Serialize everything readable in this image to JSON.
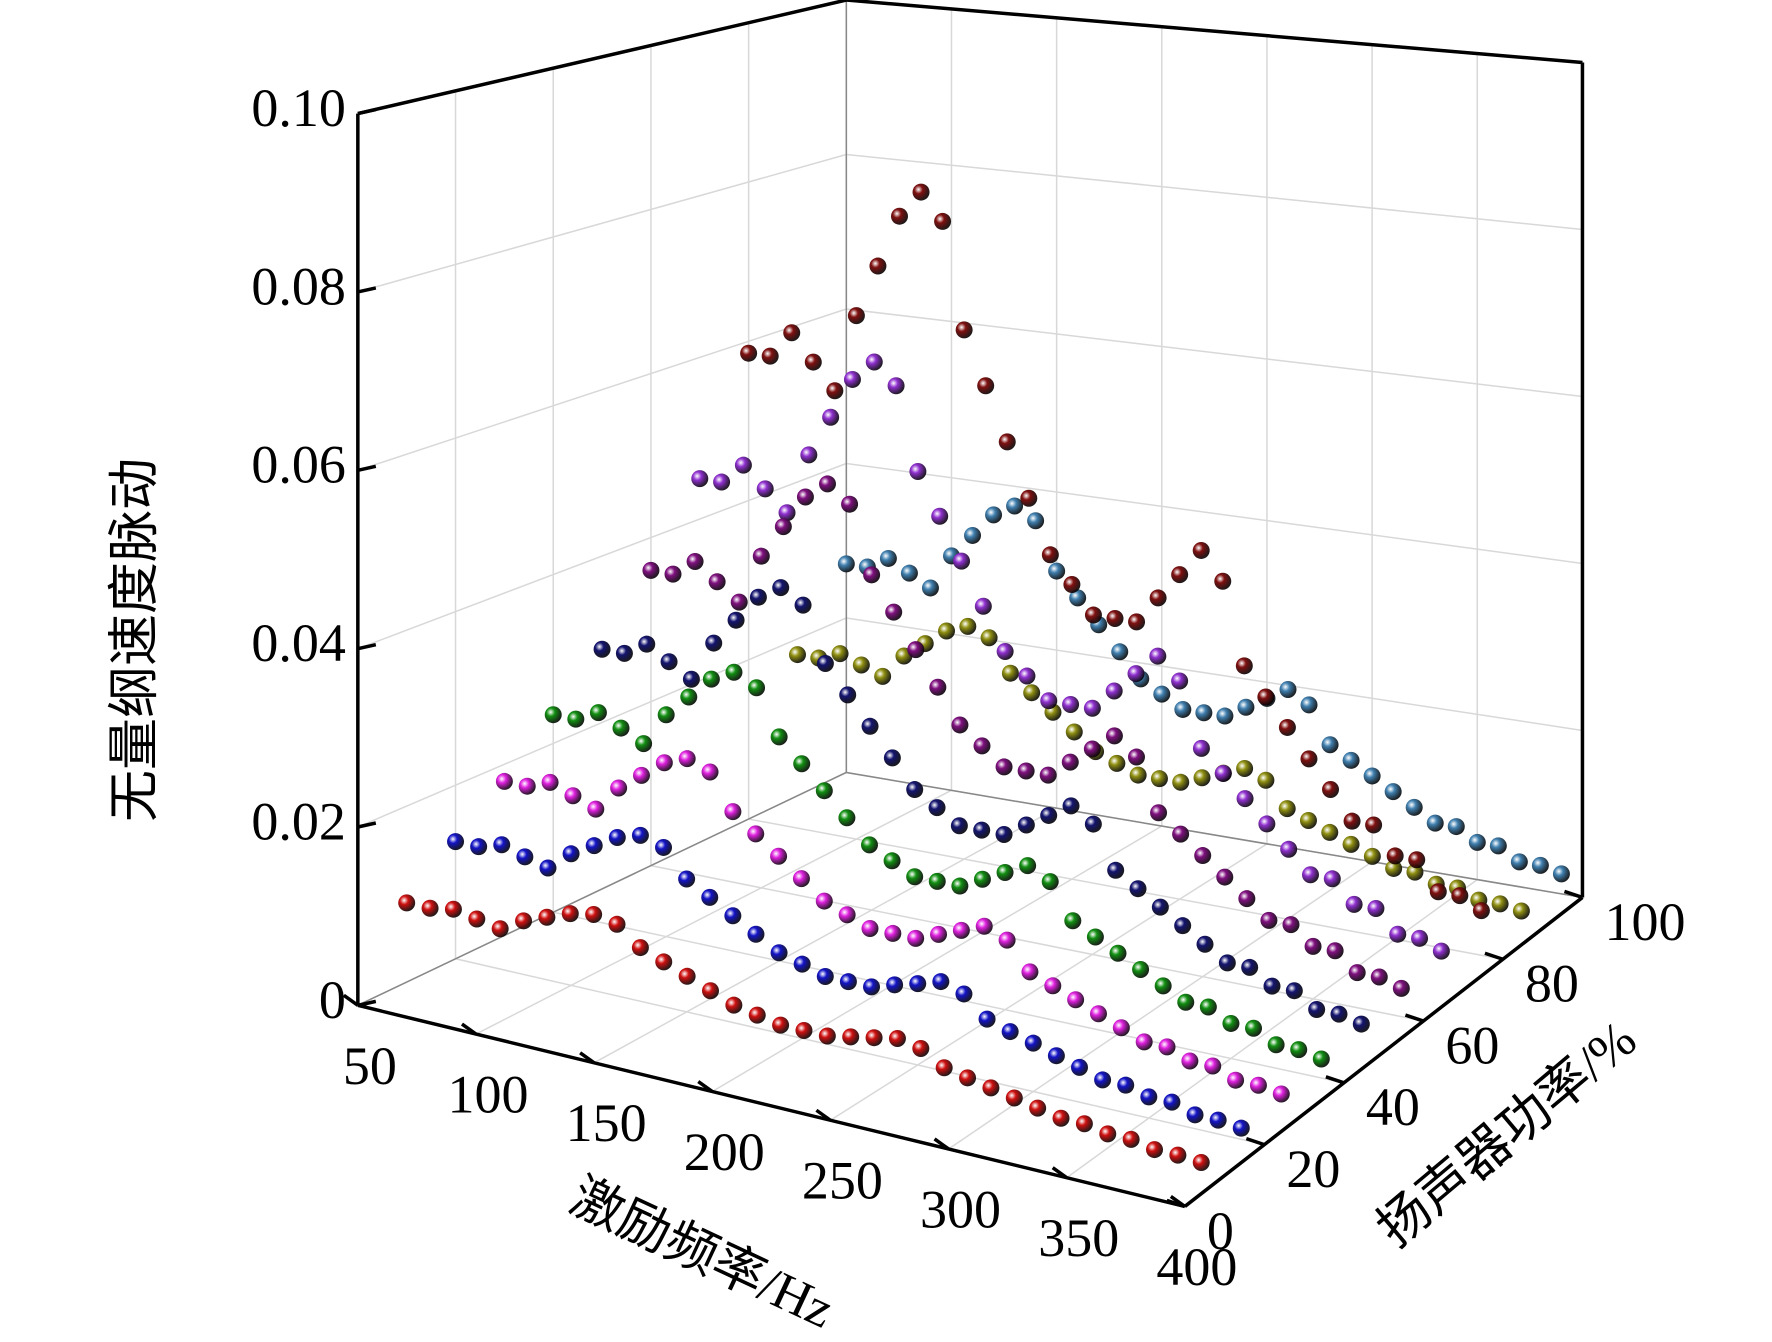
{
  "chart_data": {
    "type": "scatter3d",
    "xlabel": "激励频率/Hz",
    "ylabel": "扬声器功率/%",
    "zlabel": "无量纲速度脉动",
    "xlim": [
      50,
      400
    ],
    "xticks": [
      50,
      100,
      150,
      200,
      250,
      300,
      350,
      400
    ],
    "ylim": [
      0,
      100
    ],
    "yticks": [
      0,
      20,
      40,
      60,
      80,
      100
    ],
    "zlim": [
      0,
      0.1
    ],
    "zticks": [
      0,
      0.02,
      0.04,
      0.06,
      0.08,
      {
        "value": 0.1,
        "label": "0.10"
      }
    ],
    "grid": true,
    "x": [
      50,
      60,
      70,
      80,
      90,
      100,
      110,
      120,
      130,
      140,
      150,
      160,
      170,
      180,
      190,
      200,
      210,
      220,
      230,
      240,
      250,
      260,
      270,
      280,
      290,
      300,
      310,
      320,
      330,
      340,
      350,
      360,
      370,
      380,
      390
    ],
    "series": [
      {
        "color": "#d01010",
        "y": 10,
        "values": [
          0.009,
          0.009,
          0.0095,
          0.009,
          0.0085,
          0.01,
          0.011,
          0.012,
          0.0125,
          0.012,
          0.01,
          0.009,
          0.008,
          0.007,
          0.006,
          0.0055,
          0.005,
          0.005,
          0.005,
          0.0055,
          0.006,
          0.0065,
          0.006,
          0.0045,
          0.004,
          0.0035,
          0.003,
          0.0025,
          0.002,
          0.002,
          0.0015,
          0.0015,
          0.001,
          0.001,
          0.0008
        ]
      },
      {
        "color": "#1414c8",
        "y": 20,
        "values": [
          0.0135,
          0.0135,
          0.0143,
          0.0135,
          0.0128,
          0.015,
          0.0165,
          0.018,
          0.0188,
          0.018,
          0.015,
          0.0135,
          0.012,
          0.0105,
          0.009,
          0.0083,
          0.0075,
          0.0075,
          0.0075,
          0.0083,
          0.009,
          0.0098,
          0.009,
          0.0068,
          0.006,
          0.0053,
          0.0045,
          0.0038,
          0.003,
          0.003,
          0.0023,
          0.0023,
          0.0015,
          0.0015,
          0.0012
        ]
      },
      {
        "color": "#e020e0",
        "y": 30,
        "values": [
          0.018,
          0.018,
          0.019,
          0.018,
          0.017,
          0.02,
          0.022,
          0.024,
          0.025,
          0.024,
          0.02,
          0.018,
          0.016,
          0.014,
          0.012,
          0.011,
          0.01,
          0.01,
          0.01,
          0.011,
          0.012,
          0.013,
          0.012,
          0.009,
          0.008,
          0.007,
          0.006,
          0.005,
          0.004,
          0.004,
          0.003,
          0.003,
          0.002,
          0.002,
          0.0016
        ]
      },
      {
        "color": "#129012",
        "y": 40,
        "values": [
          0.0234,
          0.0234,
          0.0247,
          0.0234,
          0.0221,
          0.026,
          0.0286,
          0.0312,
          0.0325,
          0.0312,
          0.026,
          0.0234,
          0.0208,
          0.0182,
          0.0156,
          0.0143,
          0.013,
          0.013,
          0.013,
          0.0143,
          0.0156,
          0.0169,
          0.0156,
          0.0117,
          0.0104,
          0.0091,
          0.0078,
          0.0065,
          0.0052,
          0.0052,
          0.0039,
          0.0039,
          0.0026,
          0.0026,
          0.0021
        ]
      },
      {
        "color": "#141470",
        "y": 50,
        "values": [
          0.0288,
          0.0288,
          0.0304,
          0.0288,
          0.0272,
          0.032,
          0.0352,
          0.0384,
          0.04,
          0.0384,
          0.032,
          0.0288,
          0.0256,
          0.0224,
          0.0192,
          0.0176,
          0.016,
          0.016,
          0.016,
          0.0176,
          0.0192,
          0.0208,
          0.0192,
          0.0144,
          0.0128,
          0.0112,
          0.0096,
          0.008,
          0.0064,
          0.0064,
          0.0048,
          0.0048,
          0.0032,
          0.0032,
          0.0026
        ]
      },
      {
        "color": "#801080",
        "y": 60,
        "values": [
          0.036,
          0.036,
          0.038,
          0.036,
          0.034,
          0.04,
          0.044,
          0.048,
          0.05,
          0.048,
          0.04,
          0.036,
          0.032,
          0.028,
          0.024,
          0.022,
          0.02,
          0.02,
          0.02,
          0.022,
          0.024,
          0.026,
          0.024,
          0.018,
          0.016,
          0.014,
          0.012,
          0.01,
          0.008,
          0.008,
          0.006,
          0.006,
          0.004,
          0.004,
          0.0032
        ]
      },
      {
        "color": "#9030d0",
        "y": 70,
        "values": [
          0.045,
          0.045,
          0.0475,
          0.045,
          0.0425,
          0.05,
          0.055,
          0.06,
          0.0625,
          0.06,
          0.05,
          0.045,
          0.04,
          0.035,
          0.03,
          0.0275,
          0.025,
          0.025,
          0.025,
          0.0275,
          0.03,
          0.0325,
          0.03,
          0.0225,
          0.02,
          0.0175,
          0.015,
          0.0125,
          0.01,
          0.01,
          0.0075,
          0.0075,
          0.005,
          0.005,
          0.004
        ]
      },
      {
        "color": "#801010",
        "y": 80,
        "values": [
          0.0585,
          0.0585,
          0.0618,
          0.0585,
          0.0553,
          0.065,
          0.0715,
          0.078,
          0.0813,
          0.078,
          0.065,
          0.0585,
          0.052,
          0.0455,
          0.039,
          0.0358,
          0.0325,
          0.0325,
          0.0325,
          0.0358,
          0.039,
          0.0423,
          0.039,
          0.0293,
          0.026,
          0.0228,
          0.0195,
          0.0163,
          0.013,
          0.013,
          0.0098,
          0.0098,
          0.0065,
          0.0065,
          0.0052
        ]
      },
      {
        "color": "#909012",
        "y": 90,
        "values": [
          0.018,
          0.018,
          0.019,
          0.018,
          0.017,
          0.02,
          0.022,
          0.024,
          0.025,
          0.024,
          0.02,
          0.018,
          0.016,
          0.014,
          0.012,
          0.011,
          0.01,
          0.01,
          0.01,
          0.011,
          0.012,
          0.013,
          0.012,
          0.009,
          0.008,
          0.007,
          0.006,
          0.005,
          0.004,
          0.004,
          0.003,
          0.003,
          0.002,
          0.002,
          0.0016
        ]
      },
      {
        "color": "#4080b0",
        "y": 100,
        "values": [
          0.027,
          0.027,
          0.0285,
          0.027,
          0.0255,
          0.03,
          0.033,
          0.036,
          0.0375,
          0.036,
          0.03,
          0.027,
          0.024,
          0.021,
          0.018,
          0.0165,
          0.015,
          0.015,
          0.015,
          0.0165,
          0.018,
          0.0195,
          0.018,
          0.0135,
          0.012,
          0.0105,
          0.009,
          0.0075,
          0.006,
          0.006,
          0.0045,
          0.0045,
          0.003,
          0.003,
          0.0024
        ]
      }
    ]
  }
}
